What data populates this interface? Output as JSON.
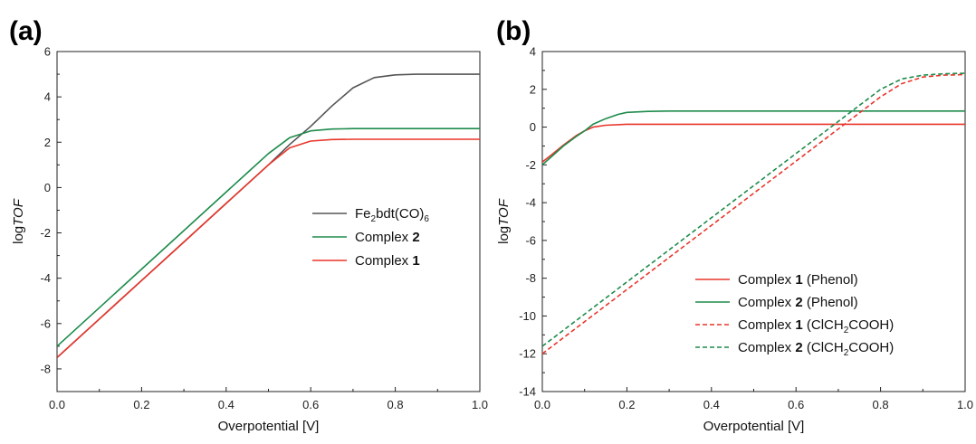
{
  "chart_data": [
    {
      "panel": "(a)",
      "type": "line",
      "xlabel": "Overpotential [V]",
      "ylabel_main": "log",
      "ylabel_italic": "TOF",
      "xlim": [
        0,
        1.0
      ],
      "ylim": [
        -9,
        6
      ],
      "xticks": [
        "0.0",
        "0.2",
        "0.4",
        "0.6",
        "0.8",
        "1.0"
      ],
      "yticks": [
        "-8",
        "-6",
        "-4",
        "-2",
        "0",
        "2",
        "4",
        "6"
      ],
      "legend_position": "center-right",
      "series": [
        {
          "name": "Fe2bdt(CO)6",
          "label_parts": [
            {
              "t": "Fe"
            },
            {
              "t": "2",
              "sub": true
            },
            {
              "t": "bdt(CO)"
            },
            {
              "t": "6",
              "sub": true
            }
          ],
          "color": "#555555",
          "dashed": false,
          "x": [
            0.0,
            0.1,
            0.2,
            0.3,
            0.4,
            0.5,
            0.55,
            0.6,
            0.65,
            0.7,
            0.75,
            0.8,
            0.85,
            0.9,
            1.0
          ],
          "y": [
            -7.5,
            -5.8,
            -4.1,
            -2.4,
            -0.7,
            1.0,
            1.9,
            2.7,
            3.6,
            4.4,
            4.85,
            4.97,
            5.0,
            5.0,
            5.0
          ]
        },
        {
          "name": "Complex 2",
          "label_parts": [
            {
              "t": "Complex "
            },
            {
              "t": "2",
              "bold": true
            }
          ],
          "color": "#1e8b4c",
          "dashed": false,
          "x": [
            0.0,
            0.1,
            0.2,
            0.3,
            0.4,
            0.45,
            0.5,
            0.55,
            0.6,
            0.65,
            0.7,
            0.8,
            0.9,
            1.0
          ],
          "y": [
            -7.0,
            -5.3,
            -3.6,
            -1.9,
            -0.2,
            0.65,
            1.5,
            2.2,
            2.5,
            2.58,
            2.6,
            2.6,
            2.6,
            2.6
          ]
        },
        {
          "name": "Complex 1",
          "label_parts": [
            {
              "t": "Complex "
            },
            {
              "t": "1",
              "bold": true
            }
          ],
          "color": "#e8362b",
          "dashed": false,
          "x": [
            0.0,
            0.1,
            0.2,
            0.3,
            0.4,
            0.5,
            0.55,
            0.6,
            0.65,
            0.7,
            0.8,
            0.9,
            1.0
          ],
          "y": [
            -7.5,
            -5.8,
            -4.1,
            -2.4,
            -0.7,
            1.0,
            1.75,
            2.05,
            2.12,
            2.13,
            2.13,
            2.13,
            2.13
          ]
        }
      ]
    },
    {
      "panel": "(b)",
      "type": "line",
      "xlabel": "Overpotential [V]",
      "ylabel_main": "log",
      "ylabel_italic": "TOF",
      "xlim": [
        0,
        1.0
      ],
      "ylim": [
        -14,
        4
      ],
      "xticks": [
        "0.0",
        "0.2",
        "0.4",
        "0.6",
        "0.8",
        "1.0"
      ],
      "yticks": [
        "-14",
        "-12",
        "-10",
        "-8",
        "-6",
        "-4",
        "-2",
        "0",
        "2",
        "4"
      ],
      "legend_position": "bottom-right",
      "series": [
        {
          "name": "Complex 1 (Phenol)",
          "label_parts": [
            {
              "t": "Complex "
            },
            {
              "t": "1",
              "bold": true
            },
            {
              "t": " (Phenol)"
            }
          ],
          "color": "#e8362b",
          "dashed": false,
          "x": [
            0.0,
            0.02,
            0.05,
            0.08,
            0.1,
            0.12,
            0.15,
            0.2,
            0.3,
            0.5,
            0.7,
            1.0
          ],
          "y": [
            -1.85,
            -1.5,
            -0.95,
            -0.45,
            -0.2,
            0.0,
            0.1,
            0.15,
            0.15,
            0.15,
            0.15,
            0.15
          ]
        },
        {
          "name": "Complex 2 (Phenol)",
          "label_parts": [
            {
              "t": "Complex "
            },
            {
              "t": "2",
              "bold": true
            },
            {
              "t": " (Phenol)"
            }
          ],
          "color": "#1e8b4c",
          "dashed": false,
          "x": [
            0.0,
            0.02,
            0.05,
            0.08,
            0.1,
            0.12,
            0.15,
            0.18,
            0.2,
            0.25,
            0.3,
            0.5,
            0.7,
            1.0
          ],
          "y": [
            -2.0,
            -1.6,
            -1.0,
            -0.5,
            -0.2,
            0.15,
            0.45,
            0.68,
            0.78,
            0.83,
            0.85,
            0.85,
            0.85,
            0.85
          ]
        },
        {
          "name": "Complex 1 (ClCH2COOH)",
          "label_parts": [
            {
              "t": "Complex "
            },
            {
              "t": "1",
              "bold": true
            },
            {
              "t": " (ClCH"
            },
            {
              "t": "2",
              "sub": true
            },
            {
              "t": "COOH)"
            }
          ],
          "color": "#e8362b",
          "dashed": true,
          "x": [
            0.0,
            0.1,
            0.2,
            0.3,
            0.4,
            0.5,
            0.6,
            0.7,
            0.8,
            0.85,
            0.9,
            0.95,
            1.0
          ],
          "y": [
            -12.0,
            -10.3,
            -8.6,
            -6.9,
            -5.2,
            -3.5,
            -1.8,
            -0.1,
            1.6,
            2.3,
            2.65,
            2.75,
            2.78
          ]
        },
        {
          "name": "Complex 2 (ClCH2COOH)",
          "label_parts": [
            {
              "t": "Complex "
            },
            {
              "t": "2",
              "bold": true
            },
            {
              "t": " (ClCH"
            },
            {
              "t": "2",
              "sub": true
            },
            {
              "t": "COOH)"
            }
          ],
          "color": "#1e8b4c",
          "dashed": true,
          "x": [
            0.0,
            0.1,
            0.2,
            0.3,
            0.4,
            0.5,
            0.6,
            0.7,
            0.8,
            0.85,
            0.9,
            0.95,
            1.0
          ],
          "y": [
            -11.6,
            -9.9,
            -8.2,
            -6.5,
            -4.8,
            -3.1,
            -1.4,
            0.3,
            2.0,
            2.55,
            2.75,
            2.82,
            2.85
          ]
        }
      ]
    }
  ]
}
